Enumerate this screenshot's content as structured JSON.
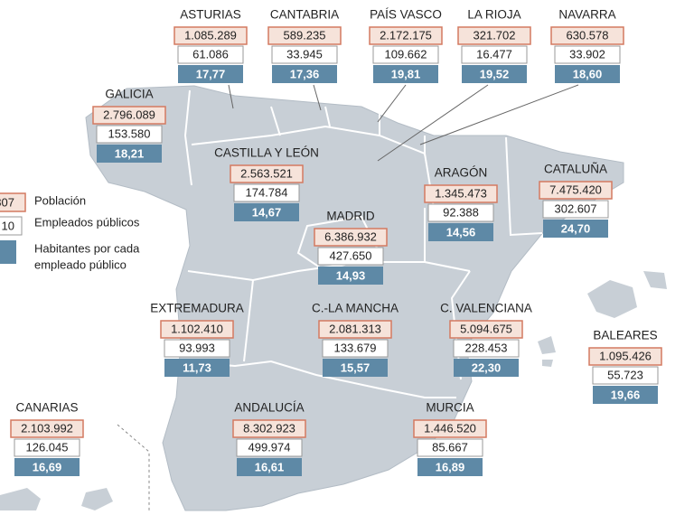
{
  "legend": {
    "sample": [
      "807",
      "10"
    ],
    "labels": [
      "Población",
      "Empleados públicos"
    ],
    "ratio_label": [
      "Habitantes por cada",
      "empleado público"
    ]
  },
  "regions": [
    {
      "name": "ASTURIAS",
      "poblacion": "1.085.289",
      "empleados": "61.086",
      "ratio": "17,77"
    },
    {
      "name": "CANTABRIA",
      "poblacion": "589.235",
      "empleados": "33.945",
      "ratio": "17,36"
    },
    {
      "name": "PAÍS VASCO",
      "poblacion": "2.172.175",
      "empleados": "109.662",
      "ratio": "19,81"
    },
    {
      "name": "LA RIOJA",
      "poblacion": "321.702",
      "empleados": "16.477",
      "ratio": "19,52"
    },
    {
      "name": "NAVARRA",
      "poblacion": "630.578",
      "empleados": "33.902",
      "ratio": "18,60"
    },
    {
      "name": "GALICIA",
      "poblacion": "2.796.089",
      "empleados": "153.580",
      "ratio": "18,21"
    },
    {
      "name": "CASTILLA Y LEÓN",
      "poblacion": "2.563.521",
      "empleados": "174.784",
      "ratio": "14,67"
    },
    {
      "name": "ARAGÓN",
      "poblacion": "1.345.473",
      "empleados": "92.388",
      "ratio": "14,56"
    },
    {
      "name": "CATALUÑA",
      "poblacion": "7.475.420",
      "empleados": "302.607",
      "ratio": "24,70"
    },
    {
      "name": "MADRID",
      "poblacion": "6.386.932",
      "empleados": "427.650",
      "ratio": "14,93"
    },
    {
      "name": "EXTREMADURA",
      "poblacion": "1.102.410",
      "empleados": "93.993",
      "ratio": "11,73"
    },
    {
      "name": "C.-LA MANCHA",
      "poblacion": "2.081.313",
      "empleados": "133.679",
      "ratio": "15,57"
    },
    {
      "name": "C. VALENCIANA",
      "poblacion": "5.094.675",
      "empleados": "228.453",
      "ratio": "22,30"
    },
    {
      "name": "BALEARES",
      "poblacion": "1.095.426",
      "empleados": "55.723",
      "ratio": "19,66"
    },
    {
      "name": "CANARIAS",
      "poblacion": "2.103.992",
      "empleados": "126.045",
      "ratio": "16,69"
    },
    {
      "name": "ANDALUCÍA",
      "poblacion": "8.302.923",
      "empleados": "499.974",
      "ratio": "16,61"
    },
    {
      "name": "MURCIA",
      "poblacion": "1.446.520",
      "empleados": "85.667",
      "ratio": "16,89"
    }
  ]
}
